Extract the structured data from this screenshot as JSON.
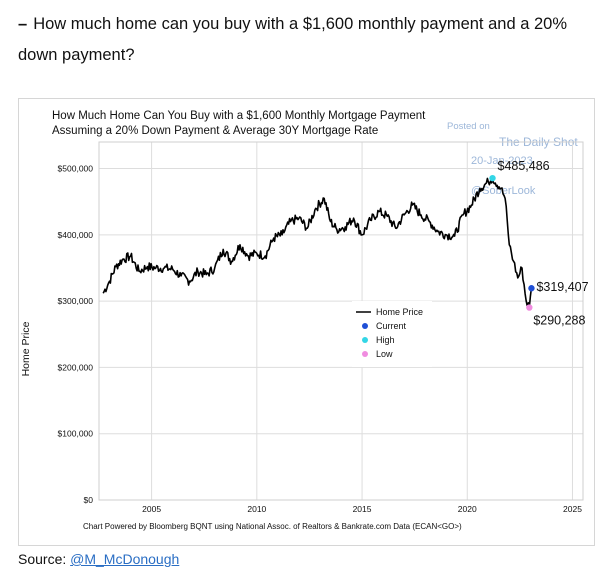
{
  "page": {
    "heading_dash": "–",
    "heading": "How much home can you buy with a $1,600 monthly payment and a 20% down payment?",
    "source_label": "Source: ",
    "source_link": "@M_McDonough"
  },
  "watermark": {
    "posted_on": "Posted on",
    "brand": "The Daily Shot",
    "date": "20-Jan-2023",
    "brand2": "@SoberLook"
  },
  "colors": {
    "line": "#000000",
    "current": "#1f4fd6",
    "high": "#33d6e6",
    "low": "#f08ce0",
    "grid": "#dddddd"
  },
  "chart_data": {
    "type": "line",
    "title": "How Much Home Can You Buy with a $1,600 Monthly Mortgage Payment",
    "subtitle": "Assuming a 20% Down Payment & Average 30Y Mortgage Rate",
    "ylabel": "Home Price",
    "xlabel": "",
    "footer": "Chart Powered by Bloomberg BQNT using National Assoc. of Realtors & Bankrate.com Data  (ECAN<GO>)",
    "xlim": [
      2002.5,
      2025.5
    ],
    "ylim": [
      0,
      540000
    ],
    "xticks": [
      2005,
      2010,
      2015,
      2020,
      2025
    ],
    "yticks": [
      0,
      100000,
      200000,
      300000,
      400000,
      500000
    ],
    "ytick_labels": [
      "$0",
      "$100,000",
      "$200,000",
      "$300,000",
      "$400,000",
      "$500,000"
    ],
    "grid": true,
    "legend_position": "center-right",
    "series": [
      {
        "name": "Home Price",
        "x": [
          2002.7,
          2003.0,
          2003.3,
          2003.6,
          2004.0,
          2004.4,
          2004.8,
          2005.2,
          2005.6,
          2006.0,
          2006.4,
          2006.8,
          2007.2,
          2007.6,
          2008.0,
          2008.4,
          2008.8,
          2009.2,
          2009.6,
          2010.0,
          2010.4,
          2010.8,
          2011.2,
          2011.6,
          2012.0,
          2012.4,
          2012.8,
          2013.2,
          2013.5,
          2013.8,
          2014.2,
          2014.6,
          2015.0,
          2015.4,
          2015.8,
          2016.2,
          2016.6,
          2017.0,
          2017.4,
          2017.8,
          2018.2,
          2018.6,
          2019.0,
          2019.4,
          2019.8,
          2020.2,
          2020.6,
          2021.0,
          2021.2,
          2021.6,
          2021.8,
          2022.0,
          2022.2,
          2022.4,
          2022.6,
          2022.8,
          2022.95,
          2023.05
        ],
        "values": [
          312000,
          330000,
          352000,
          362000,
          368000,
          345000,
          352000,
          350000,
          350000,
          348000,
          338000,
          330000,
          345000,
          340000,
          350000,
          378000,
          360000,
          385000,
          368000,
          372000,
          368000,
          395000,
          400000,
          420000,
          425000,
          410000,
          440000,
          455000,
          420000,
          408000,
          412000,
          425000,
          400000,
          422000,
          435000,
          428000,
          410000,
          430000,
          445000,
          430000,
          420000,
          405000,
          400000,
          398000,
          430000,
          445000,
          470000,
          480000,
          485486,
          470000,
          455000,
          385000,
          360000,
          335000,
          350000,
          300000,
          290288,
          319407
        ]
      }
    ],
    "markers": [
      {
        "name": "Current",
        "x": 2023.05,
        "value": 319407,
        "label": "$319,407"
      },
      {
        "name": "High",
        "x": 2021.2,
        "value": 485486,
        "label": "$485,486"
      },
      {
        "name": "Low",
        "x": 2022.95,
        "value": 290288,
        "label": "$290,288"
      }
    ]
  }
}
